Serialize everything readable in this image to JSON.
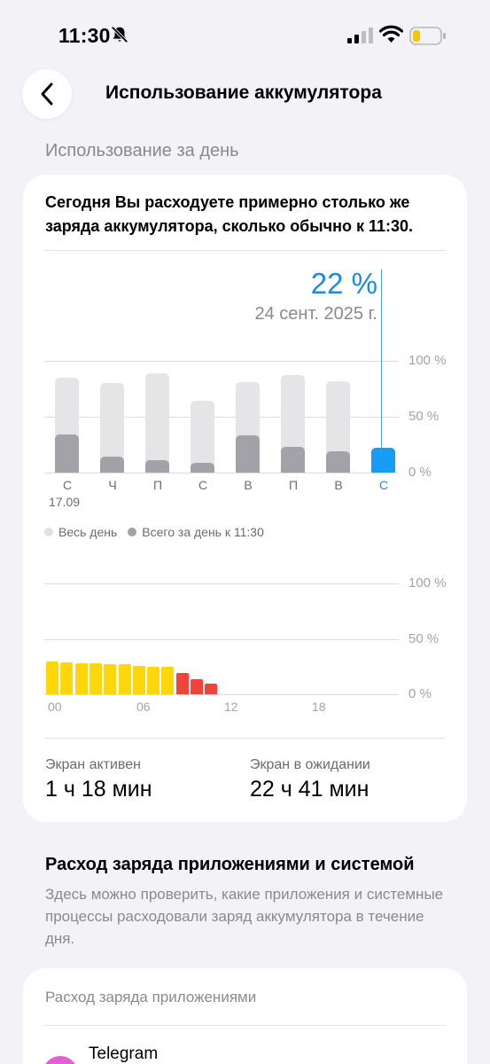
{
  "status_bar": {
    "time": "11:30"
  },
  "header": {
    "title": "Использование аккумулятора"
  },
  "section_label": "Использование за день",
  "card": {
    "summary": "Сегодня Вы расходуете примерно столько же заряда аккумулятора, сколько обычно к 11:30.",
    "selected_value": "22 %",
    "selected_date": "24 сент. 2025 г.",
    "legend_all_day": "Весь день",
    "legend_by_time": "Всего за день к 11:30",
    "first_day_date": "17.09",
    "screen_on_label": "Экран активен",
    "screen_on_value": "1 ч 18 мин",
    "screen_off_label": "Экран в ожидании",
    "screen_off_value": "22 ч 41 мин"
  },
  "apps_section": {
    "title": "Расход заряда приложениями и системой",
    "description": "Здесь можно проверить, какие приложения и системные процессы расходовали заряд аккумулятора в течение дня.",
    "card_label": "Расход заряда приложениями",
    "first_app": "Telegram"
  },
  "colors": {
    "accent": "#1a9bf5",
    "bar_bg": "#e5e5e7",
    "bar_fg": "#a2a2a8",
    "yellow": "#fed70a",
    "red": "#f0443a"
  },
  "chart_data": [
    {
      "type": "bar",
      "categories": [
        "С",
        "Ч",
        "П",
        "С",
        "В",
        "П",
        "В",
        "С"
      ],
      "series": [
        {
          "name": "Весь день",
          "values": [
            85,
            80,
            89,
            64,
            81,
            87,
            82,
            22
          ]
        },
        {
          "name": "Всего за день к 11:30",
          "values": [
            34,
            14,
            11,
            9,
            33,
            23,
            19,
            22
          ]
        }
      ],
      "yticks": [
        "100 %",
        "50 %",
        "0 %"
      ],
      "ylim": [
        0,
        100
      ],
      "legend": "bottom-left"
    },
    {
      "type": "bar",
      "xticks": [
        "00",
        "06",
        "12",
        "18"
      ],
      "x": [
        0,
        1,
        2,
        3,
        4,
        5,
        6,
        7,
        8,
        9,
        10,
        11
      ],
      "values": [
        30,
        29,
        28,
        28,
        27,
        27,
        26,
        25,
        25,
        19,
        14,
        10
      ],
      "bar_colors": [
        "yellow",
        "yellow",
        "yellow",
        "yellow",
        "yellow",
        "yellow",
        "yellow",
        "yellow",
        "yellow",
        "red",
        "red",
        "red"
      ],
      "yticks": [
        "100 %",
        "50 %",
        "0 %"
      ],
      "ylim": [
        0,
        100
      ]
    }
  ]
}
